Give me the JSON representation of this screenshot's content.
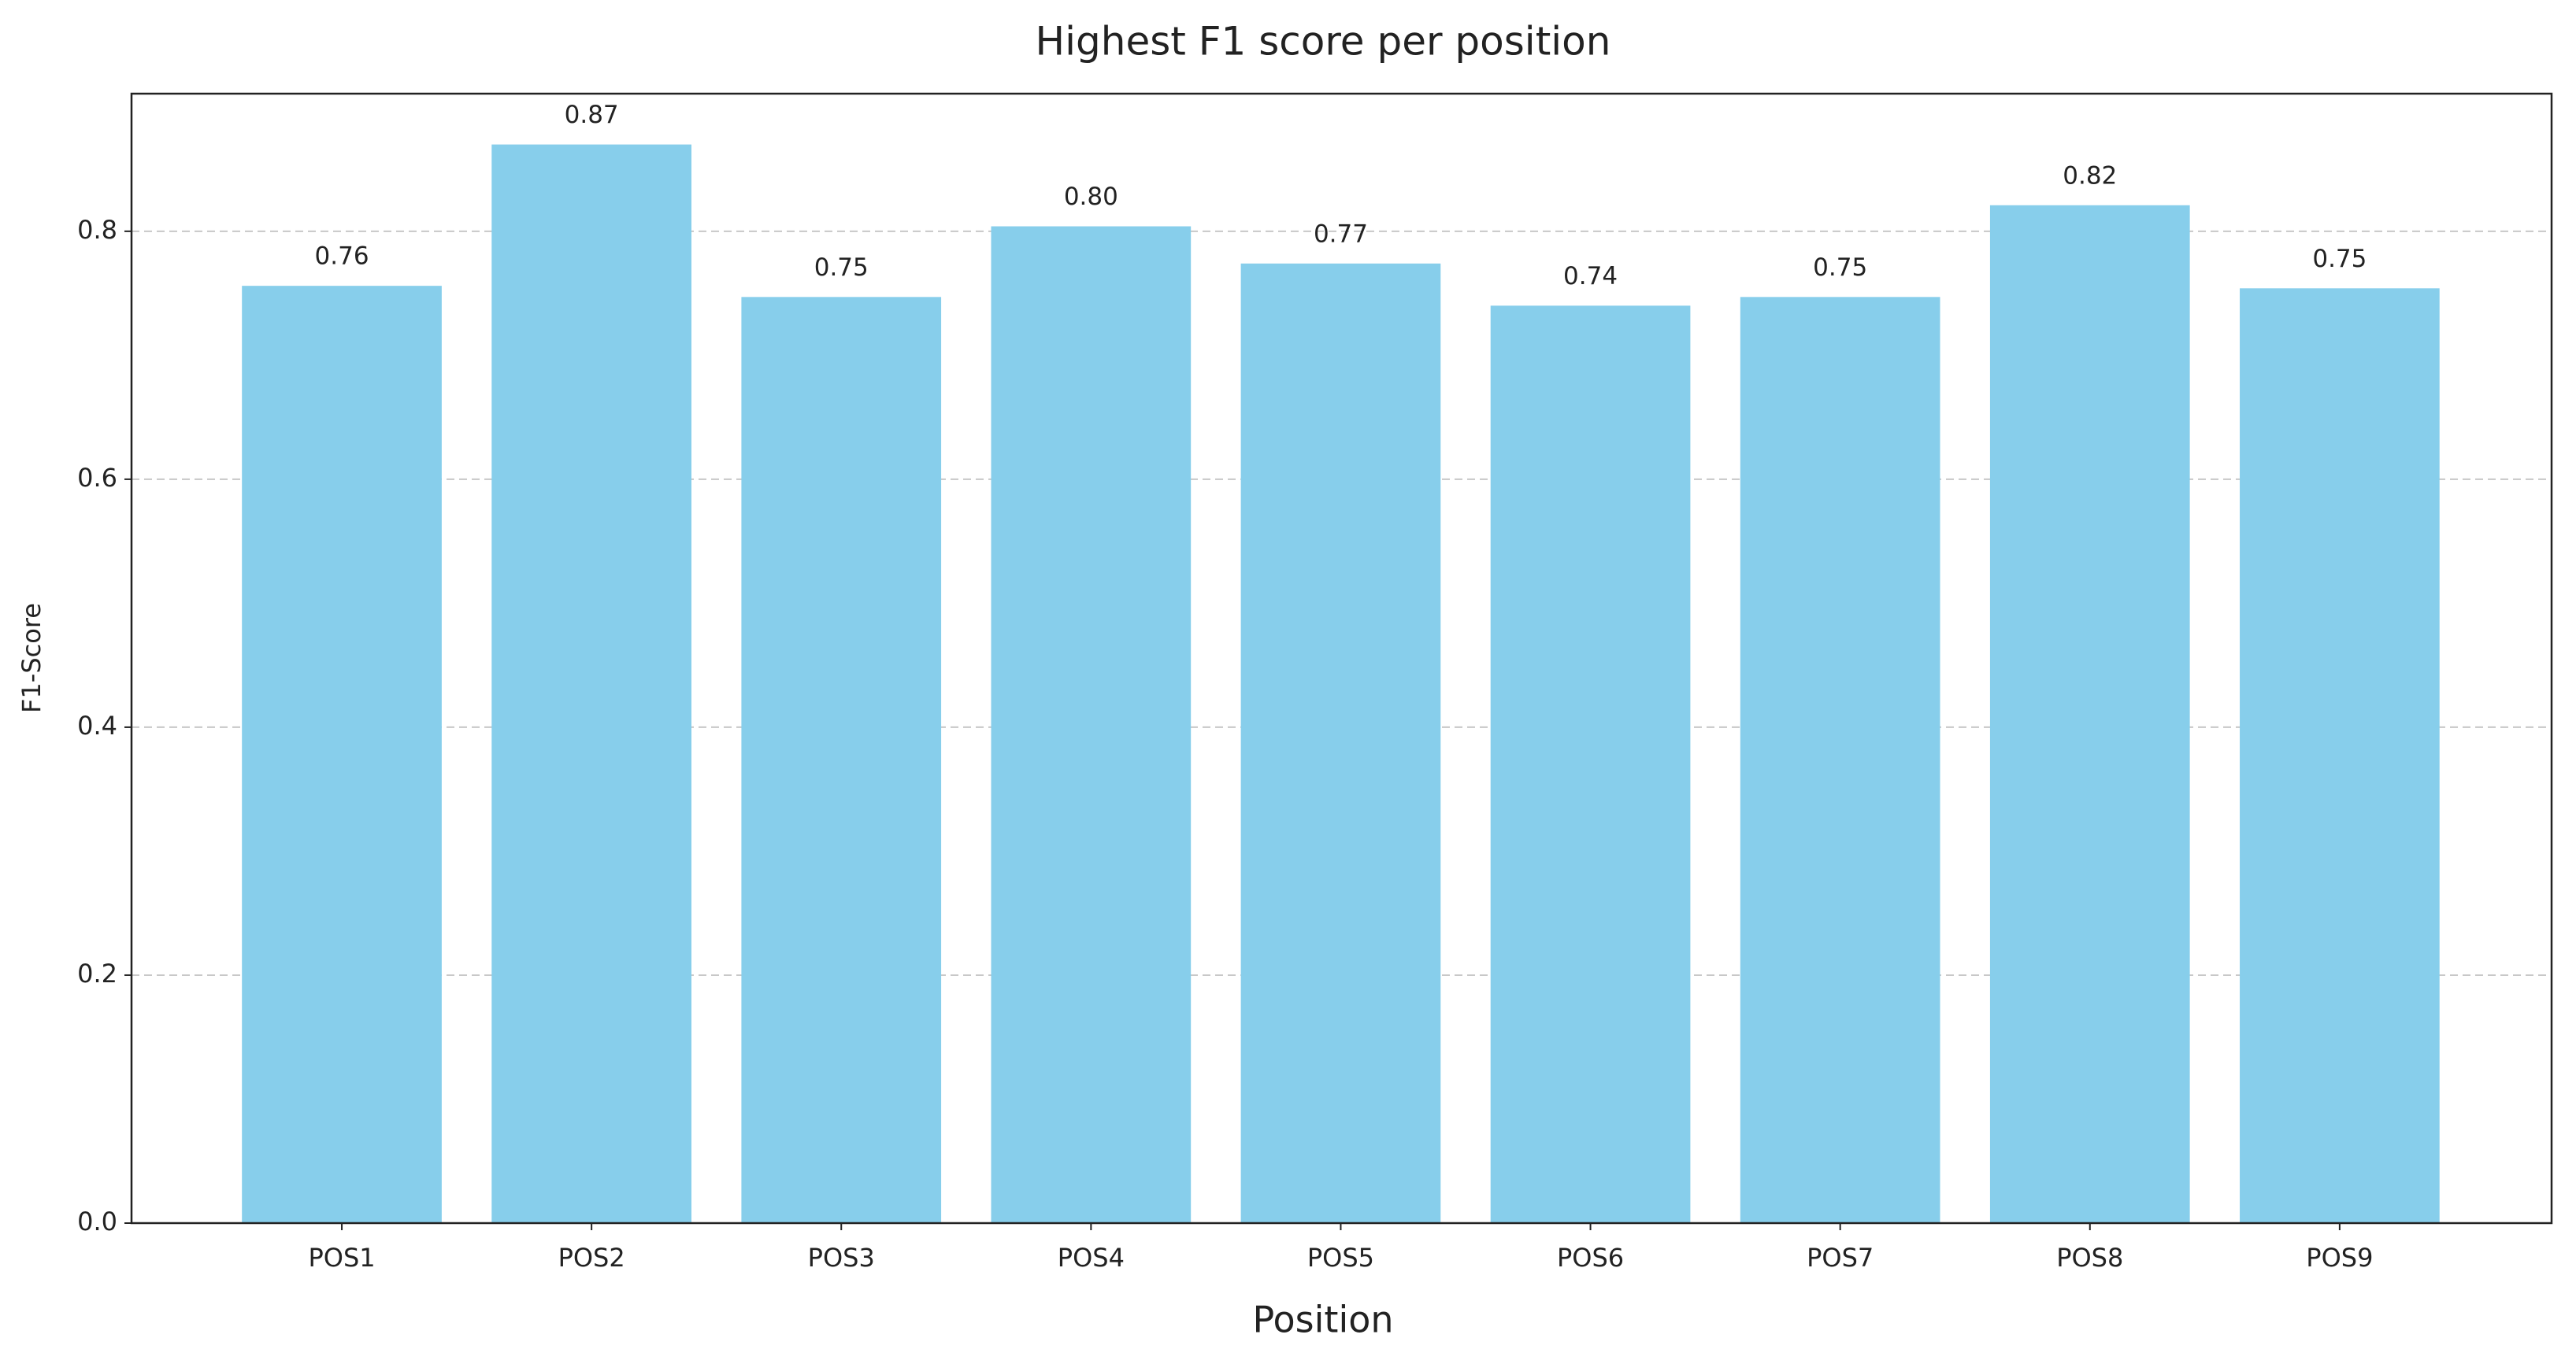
{
  "chart_data": {
    "type": "bar",
    "title": "Highest F1 score per position",
    "x_label": "Position",
    "y_label": "F1-Score",
    "categories": [
      "POS1",
      "POS2",
      "POS3",
      "POS4",
      "POS5",
      "POS6",
      "POS7",
      "POS8",
      "POS9"
    ],
    "values": [
      0.756,
      0.87,
      0.747,
      0.804,
      0.774,
      0.74,
      0.747,
      0.821,
      0.754
    ],
    "value_labels": [
      "0.76",
      "0.87",
      "0.75",
      "0.80",
      "0.77",
      "0.74",
      "0.75",
      "0.82",
      "0.75"
    ],
    "color": "#87ceeb",
    "ylim": [
      0,
      0.911
    ],
    "yticks": [
      {
        "value": 0,
        "label": "0.0"
      },
      0.2,
      0.4,
      0.6,
      0.8
    ],
    "grid": true
  }
}
